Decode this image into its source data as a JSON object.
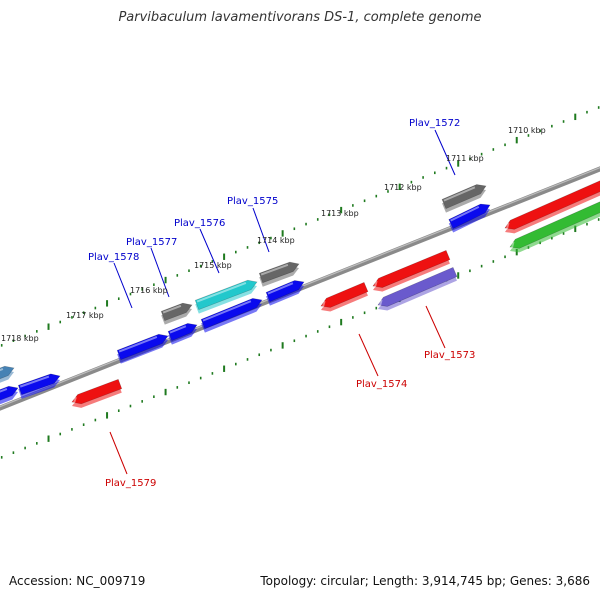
{
  "title": "Parvibaculum lavamentivorans DS-1, complete genome",
  "footer": {
    "accession": "Accession: NC_009719",
    "summary": "Topology: circular; Length: 3,914,745 bp; Genes: 3,686"
  },
  "colors": {
    "backbone": "#7a7a7a",
    "scale_ticks": "#1f7a1f",
    "forward_label": "#0000cc",
    "reverse_label": "#cc0000",
    "gene_blue": "#0a0aee",
    "gene_red": "#ee1111",
    "gene_gray": "#666666",
    "gene_cyan": "#22c8cc",
    "gene_purple": "#6a5acd",
    "gene_green": "#33bb33",
    "gene_steel": "#4682b4"
  },
  "scale_labels": [
    "1710 kbp",
    "1711 kbp",
    "1712 kbp",
    "1713 kbp",
    "1714 kbp",
    "1715 kbp",
    "1716 kbp",
    "1717 kbp",
    "1718 kbp"
  ],
  "gene_labels": {
    "forward": [
      "Plav_1572",
      "Plav_1575",
      "Plav_1576",
      "Plav_1577",
      "Plav_1578"
    ],
    "reverse": [
      "Plav_1573",
      "Plav_1574",
      "Plav_1579"
    ]
  }
}
